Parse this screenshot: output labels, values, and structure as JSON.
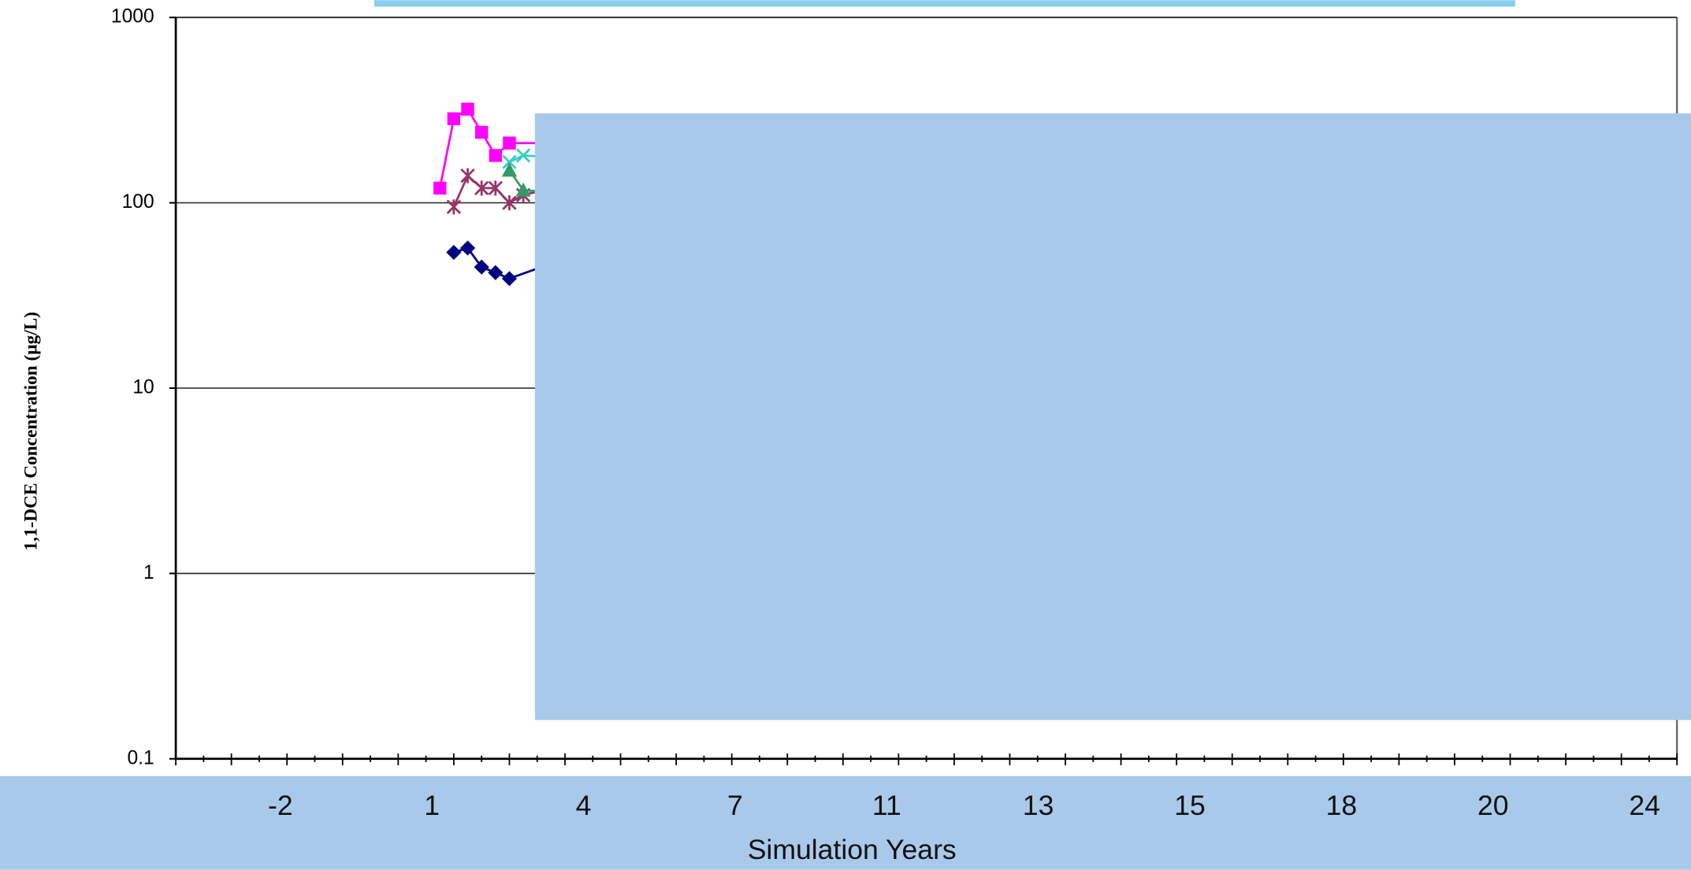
{
  "chart_data": {
    "type": "line",
    "y_label": "1,1-DCE Concentration (µg/L)",
    "x_label": "Simulation Years",
    "log_y": true,
    "grid": true,
    "ylim": [
      0.1,
      1000
    ],
    "yticks": [
      0.1,
      1,
      10,
      100,
      1000
    ],
    "xlim": [
      0,
      27
    ],
    "xticks": [
      0,
      0.5,
      1,
      1.5,
      2,
      2.5,
      3,
      3.5,
      4,
      4.5,
      5,
      5.5,
      6,
      6.5,
      7,
      7.5,
      8,
      8.5,
      9,
      9.5,
      10,
      10.5,
      11,
      11.5,
      12,
      12.5,
      13,
      13.5,
      14,
      14.5,
      15,
      15.5,
      16,
      16.5,
      17,
      17.5,
      18,
      18.5,
      19,
      19.5,
      20,
      20.5,
      21,
      21.5,
      22,
      22.5,
      23,
      23.5,
      24,
      24.5,
      25,
      25.5,
      26,
      26.5,
      27
    ],
    "band_labels": [
      "-2",
      "1",
      "4",
      "7",
      "11",
      "13",
      "15",
      "18",
      "20",
      "24"
    ],
    "series": [
      {
        "color": "#ff00ff",
        "marker": "square",
        "x": [
          4.75,
          5,
          5.25,
          5.5,
          5.75,
          6,
          7
        ],
        "values": [
          120,
          284,
          320,
          240,
          180,
          210,
          210
        ]
      },
      {
        "color": "#993366",
        "marker": "star",
        "x": [
          5,
          5.25,
          5.5,
          5.75,
          6,
          6.25,
          7
        ],
        "values": [
          95,
          140,
          120,
          120,
          100,
          110,
          125
        ]
      },
      {
        "color": "#000080",
        "marker": "diamond",
        "x": [
          5,
          5.25,
          5.5,
          5.75,
          6,
          7
        ],
        "values": [
          54,
          57,
          45,
          42,
          39,
          50
        ]
      },
      {
        "color": "#33cccc",
        "marker": "cross",
        "x": [
          6,
          6.25,
          7
        ],
        "values": [
          166,
          180,
          175
        ]
      },
      {
        "color": "#339966",
        "marker": "triangle",
        "x": [
          6,
          6.25,
          7
        ],
        "values": [
          150,
          117,
          112
        ]
      }
    ]
  }
}
